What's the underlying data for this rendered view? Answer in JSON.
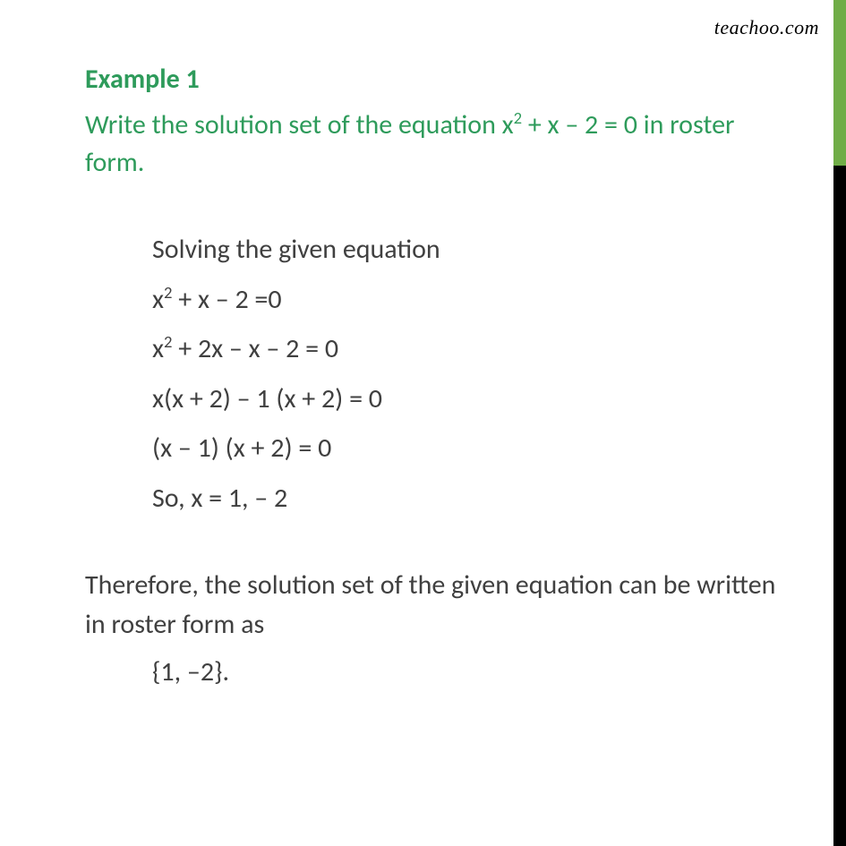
{
  "watermark": "teachoo.com",
  "example": {
    "title": "Example 1",
    "question_pre": "Write the solution set of the equation x",
    "question_exp": "2",
    "question_post": " + x – 2 = 0 in roster form."
  },
  "solution": {
    "intro": "Solving the given equation",
    "step1_pre": "x",
    "step1_exp": "2",
    "step1_post": " + x – 2 =0",
    "step2_pre": "x",
    "step2_exp": "2",
    "step2_post": " + 2x – x – 2 = 0",
    "step3": "x(x + 2) – 1 (x + 2) = 0",
    "step4": "(x – 1) (x + 2) = 0",
    "step5": "So, x = 1, – 2"
  },
  "conclusion": {
    "text": "Therefore, the solution set of the given equation can be written in roster form as",
    "answer": "{1, –2}."
  },
  "colors": {
    "green_accent": "#2e9b5b",
    "border_green": "#70ad47",
    "body_text": "#404040",
    "black": "#000000"
  }
}
